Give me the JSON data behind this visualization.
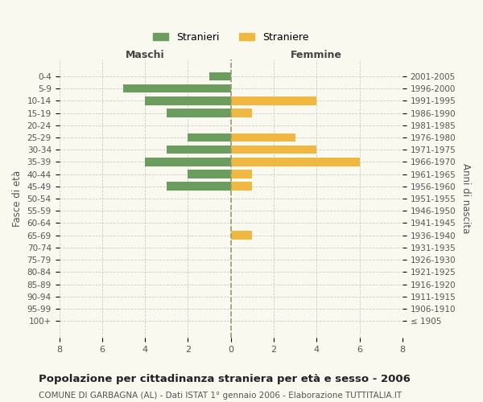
{
  "age_groups": [
    "100+",
    "95-99",
    "90-94",
    "85-89",
    "80-84",
    "75-79",
    "70-74",
    "65-69",
    "60-64",
    "55-59",
    "50-54",
    "45-49",
    "40-44",
    "35-39",
    "30-34",
    "25-29",
    "20-24",
    "15-19",
    "10-14",
    "5-9",
    "0-4"
  ],
  "birth_years": [
    "≤ 1905",
    "1906-1910",
    "1911-1915",
    "1916-1920",
    "1921-1925",
    "1926-1930",
    "1931-1935",
    "1936-1940",
    "1941-1945",
    "1946-1950",
    "1951-1955",
    "1956-1960",
    "1961-1965",
    "1966-1970",
    "1971-1975",
    "1976-1980",
    "1981-1985",
    "1986-1990",
    "1991-1995",
    "1996-2000",
    "2001-2005"
  ],
  "maschi": [
    0,
    0,
    0,
    0,
    0,
    0,
    0,
    0,
    0,
    0,
    0,
    3,
    2,
    4,
    3,
    2,
    0,
    3,
    4,
    5,
    1
  ],
  "femmine": [
    0,
    0,
    0,
    0,
    0,
    0,
    0,
    1,
    0,
    0,
    0,
    1,
    1,
    6,
    4,
    3,
    0,
    1,
    4,
    0,
    0
  ],
  "color_maschi": "#6b9e5e",
  "color_femmine": "#f0b840",
  "title": "Popolazione per cittadinanza straniera per età e sesso - 2006",
  "subtitle": "COMUNE DI GARBAGNA (AL) - Dati ISTAT 1° gennaio 2006 - Elaborazione TUTTITALIA.IT",
  "xlabel_left": "Maschi",
  "xlabel_right": "Femmine",
  "ylabel_left": "Fasce di età",
  "ylabel_right": "Anni di nascita",
  "legend_maschi": "Stranieri",
  "legend_femmine": "Straniere",
  "xlim": 8,
  "background_color": "#f9f9f0"
}
